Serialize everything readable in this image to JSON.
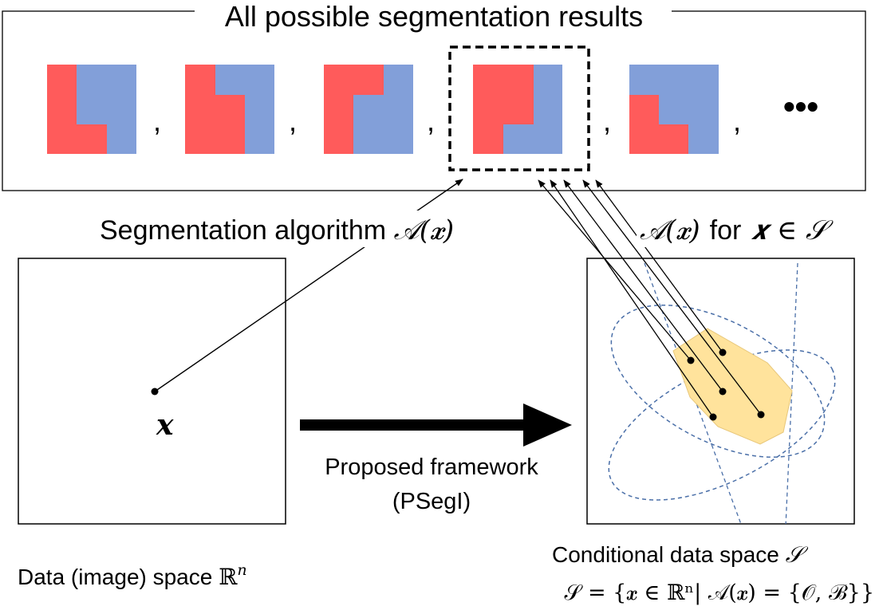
{
  "results_panel": {
    "title": "All possible segmentation results",
    "separator": ",",
    "ellipsis": "•••"
  },
  "algorithm": {
    "label_text": "Segmentation algorithm ",
    "math": "𝒜(𝒙)"
  },
  "conditional_label": {
    "math_a": "𝒜(𝒙)",
    "for_text": "for",
    "math_b": "𝒙 ∈ 𝒮"
  },
  "data_space": {
    "point_label": "𝒙",
    "caption_text": "Data (image) space ",
    "caption_math": "ℝ",
    "caption_sup": "n"
  },
  "framework": {
    "line1": "Proposed framework",
    "line2": "(PSegI)"
  },
  "conditional_space": {
    "caption_text": "Conditional data space ",
    "caption_math": "𝒮",
    "definition": "𝒮 = {𝒙 ∈ ℝⁿ| 𝒜(𝒙) = {𝒪, ℬ}}"
  },
  "colors": {
    "object": "#FF5B5B",
    "background": "#829FD9",
    "region": "#FFE39C",
    "region_stroke": "#E8C77A",
    "dashed": "#4A6FA8"
  }
}
